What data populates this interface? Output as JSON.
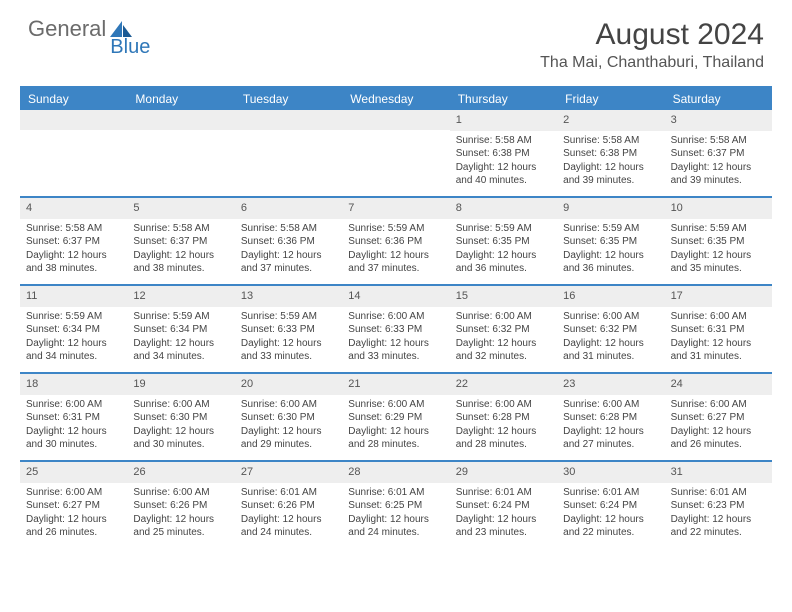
{
  "logo": {
    "general": "General",
    "blue": "Blue"
  },
  "title": "August 2024",
  "location": "Tha Mai, Chanthaburi, Thailand",
  "colors": {
    "brand_blue": "#3d85c6",
    "header_text": "#ffffff",
    "daynum_bg": "#eeeeee",
    "body_text": "#444444",
    "logo_gray": "#6b6b6b",
    "logo_blue": "#2f77b8"
  },
  "day_headers": [
    "Sunday",
    "Monday",
    "Tuesday",
    "Wednesday",
    "Thursday",
    "Friday",
    "Saturday"
  ],
  "weeks": [
    [
      {
        "day": "",
        "sunrise": "",
        "sunset": "",
        "daylight": ""
      },
      {
        "day": "",
        "sunrise": "",
        "sunset": "",
        "daylight": ""
      },
      {
        "day": "",
        "sunrise": "",
        "sunset": "",
        "daylight": ""
      },
      {
        "day": "",
        "sunrise": "",
        "sunset": "",
        "daylight": ""
      },
      {
        "day": "1",
        "sunrise": "Sunrise: 5:58 AM",
        "sunset": "Sunset: 6:38 PM",
        "daylight": "Daylight: 12 hours and 40 minutes."
      },
      {
        "day": "2",
        "sunrise": "Sunrise: 5:58 AM",
        "sunset": "Sunset: 6:38 PM",
        "daylight": "Daylight: 12 hours and 39 minutes."
      },
      {
        "day": "3",
        "sunrise": "Sunrise: 5:58 AM",
        "sunset": "Sunset: 6:37 PM",
        "daylight": "Daylight: 12 hours and 39 minutes."
      }
    ],
    [
      {
        "day": "4",
        "sunrise": "Sunrise: 5:58 AM",
        "sunset": "Sunset: 6:37 PM",
        "daylight": "Daylight: 12 hours and 38 minutes."
      },
      {
        "day": "5",
        "sunrise": "Sunrise: 5:58 AM",
        "sunset": "Sunset: 6:37 PM",
        "daylight": "Daylight: 12 hours and 38 minutes."
      },
      {
        "day": "6",
        "sunrise": "Sunrise: 5:58 AM",
        "sunset": "Sunset: 6:36 PM",
        "daylight": "Daylight: 12 hours and 37 minutes."
      },
      {
        "day": "7",
        "sunrise": "Sunrise: 5:59 AM",
        "sunset": "Sunset: 6:36 PM",
        "daylight": "Daylight: 12 hours and 37 minutes."
      },
      {
        "day": "8",
        "sunrise": "Sunrise: 5:59 AM",
        "sunset": "Sunset: 6:35 PM",
        "daylight": "Daylight: 12 hours and 36 minutes."
      },
      {
        "day": "9",
        "sunrise": "Sunrise: 5:59 AM",
        "sunset": "Sunset: 6:35 PM",
        "daylight": "Daylight: 12 hours and 36 minutes."
      },
      {
        "day": "10",
        "sunrise": "Sunrise: 5:59 AM",
        "sunset": "Sunset: 6:35 PM",
        "daylight": "Daylight: 12 hours and 35 minutes."
      }
    ],
    [
      {
        "day": "11",
        "sunrise": "Sunrise: 5:59 AM",
        "sunset": "Sunset: 6:34 PM",
        "daylight": "Daylight: 12 hours and 34 minutes."
      },
      {
        "day": "12",
        "sunrise": "Sunrise: 5:59 AM",
        "sunset": "Sunset: 6:34 PM",
        "daylight": "Daylight: 12 hours and 34 minutes."
      },
      {
        "day": "13",
        "sunrise": "Sunrise: 5:59 AM",
        "sunset": "Sunset: 6:33 PM",
        "daylight": "Daylight: 12 hours and 33 minutes."
      },
      {
        "day": "14",
        "sunrise": "Sunrise: 6:00 AM",
        "sunset": "Sunset: 6:33 PM",
        "daylight": "Daylight: 12 hours and 33 minutes."
      },
      {
        "day": "15",
        "sunrise": "Sunrise: 6:00 AM",
        "sunset": "Sunset: 6:32 PM",
        "daylight": "Daylight: 12 hours and 32 minutes."
      },
      {
        "day": "16",
        "sunrise": "Sunrise: 6:00 AM",
        "sunset": "Sunset: 6:32 PM",
        "daylight": "Daylight: 12 hours and 31 minutes."
      },
      {
        "day": "17",
        "sunrise": "Sunrise: 6:00 AM",
        "sunset": "Sunset: 6:31 PM",
        "daylight": "Daylight: 12 hours and 31 minutes."
      }
    ],
    [
      {
        "day": "18",
        "sunrise": "Sunrise: 6:00 AM",
        "sunset": "Sunset: 6:31 PM",
        "daylight": "Daylight: 12 hours and 30 minutes."
      },
      {
        "day": "19",
        "sunrise": "Sunrise: 6:00 AM",
        "sunset": "Sunset: 6:30 PM",
        "daylight": "Daylight: 12 hours and 30 minutes."
      },
      {
        "day": "20",
        "sunrise": "Sunrise: 6:00 AM",
        "sunset": "Sunset: 6:30 PM",
        "daylight": "Daylight: 12 hours and 29 minutes."
      },
      {
        "day": "21",
        "sunrise": "Sunrise: 6:00 AM",
        "sunset": "Sunset: 6:29 PM",
        "daylight": "Daylight: 12 hours and 28 minutes."
      },
      {
        "day": "22",
        "sunrise": "Sunrise: 6:00 AM",
        "sunset": "Sunset: 6:28 PM",
        "daylight": "Daylight: 12 hours and 28 minutes."
      },
      {
        "day": "23",
        "sunrise": "Sunrise: 6:00 AM",
        "sunset": "Sunset: 6:28 PM",
        "daylight": "Daylight: 12 hours and 27 minutes."
      },
      {
        "day": "24",
        "sunrise": "Sunrise: 6:00 AM",
        "sunset": "Sunset: 6:27 PM",
        "daylight": "Daylight: 12 hours and 26 minutes."
      }
    ],
    [
      {
        "day": "25",
        "sunrise": "Sunrise: 6:00 AM",
        "sunset": "Sunset: 6:27 PM",
        "daylight": "Daylight: 12 hours and 26 minutes."
      },
      {
        "day": "26",
        "sunrise": "Sunrise: 6:00 AM",
        "sunset": "Sunset: 6:26 PM",
        "daylight": "Daylight: 12 hours and 25 minutes."
      },
      {
        "day": "27",
        "sunrise": "Sunrise: 6:01 AM",
        "sunset": "Sunset: 6:26 PM",
        "daylight": "Daylight: 12 hours and 24 minutes."
      },
      {
        "day": "28",
        "sunrise": "Sunrise: 6:01 AM",
        "sunset": "Sunset: 6:25 PM",
        "daylight": "Daylight: 12 hours and 24 minutes."
      },
      {
        "day": "29",
        "sunrise": "Sunrise: 6:01 AM",
        "sunset": "Sunset: 6:24 PM",
        "daylight": "Daylight: 12 hours and 23 minutes."
      },
      {
        "day": "30",
        "sunrise": "Sunrise: 6:01 AM",
        "sunset": "Sunset: 6:24 PM",
        "daylight": "Daylight: 12 hours and 22 minutes."
      },
      {
        "day": "31",
        "sunrise": "Sunrise: 6:01 AM",
        "sunset": "Sunset: 6:23 PM",
        "daylight": "Daylight: 12 hours and 22 minutes."
      }
    ]
  ]
}
